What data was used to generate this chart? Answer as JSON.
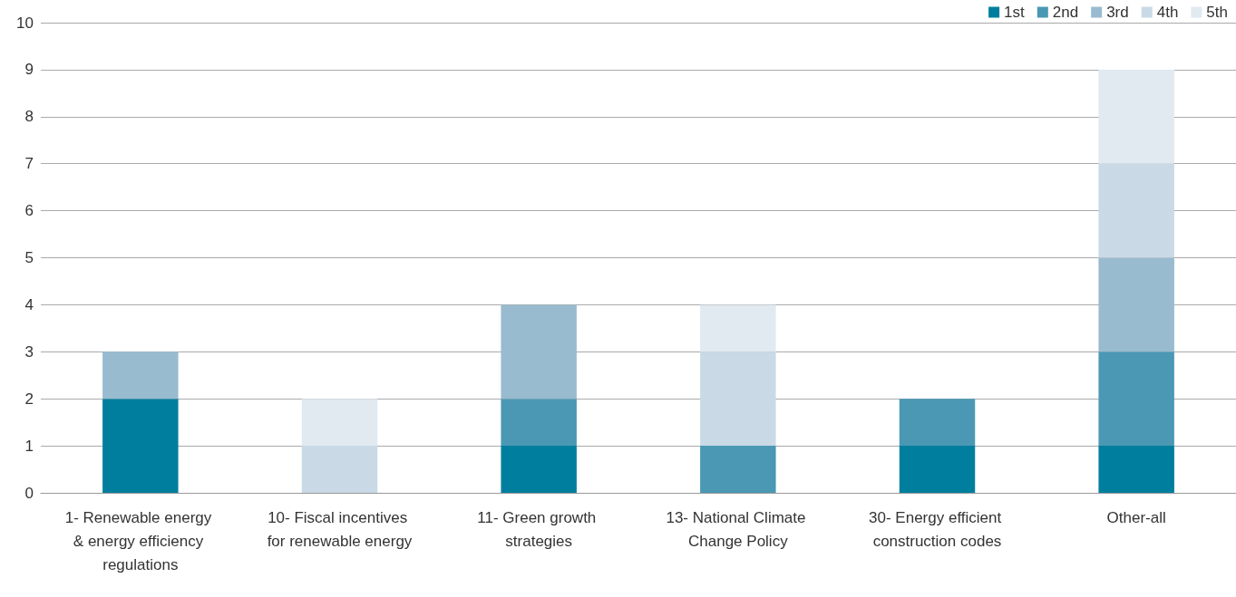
{
  "chart_data": {
    "type": "bar",
    "stacked": true,
    "categories": [
      "1- Renewable energy & energy efficiency regulations",
      "10- Fiscal incentives for renewable energy",
      "11- Green growth strategies",
      "13- National Climate Change Policy",
      "30- Energy efficient construction codes",
      "Other-all"
    ],
    "series": [
      {
        "name": "1st",
        "color": "#007e9e",
        "values": [
          2,
          0,
          1,
          0,
          1,
          1
        ]
      },
      {
        "name": "2nd",
        "color": "#4a98b4",
        "values": [
          0,
          0,
          1,
          1,
          1,
          2
        ]
      },
      {
        "name": "3rd",
        "color": "#99bbcf",
        "values": [
          1,
          0,
          2,
          0,
          0,
          2
        ]
      },
      {
        "name": "4th",
        "color": "#c9dae6",
        "values": [
          0,
          1,
          0,
          2,
          0,
          2
        ]
      },
      {
        "name": "5th",
        "color": "#e1e9f1",
        "values": [
          0,
          1,
          0,
          1,
          0,
          2
        ]
      }
    ],
    "ylim": [
      0,
      10
    ],
    "yticks": [
      0,
      1,
      2,
      3,
      4,
      5,
      6,
      7,
      8,
      9,
      10
    ],
    "grid": "y",
    "legend": "top right"
  }
}
